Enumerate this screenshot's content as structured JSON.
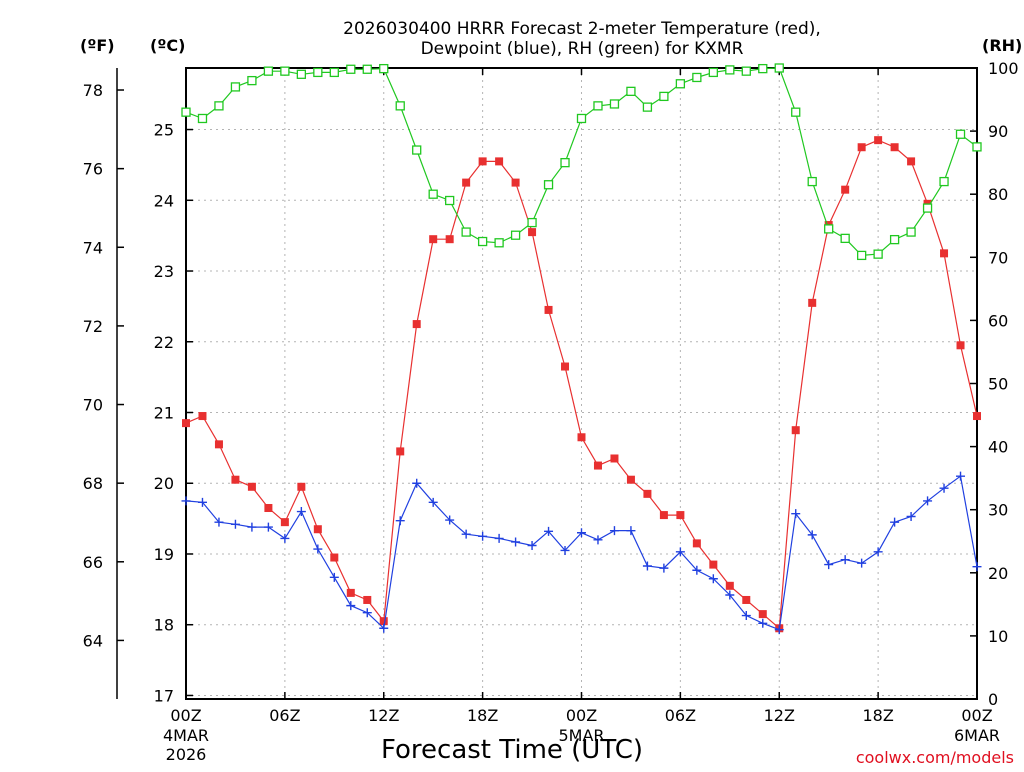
{
  "chart_data": {
    "type": "line",
    "title_line1": "2026030400 HRRR Forecast 2-meter Temperature (red),",
    "title_line2": "Dewpoint (blue), RH (green) for KXMR",
    "xlabel": "Forecast Time (UTC)",
    "credit": "coolwx.com/models",
    "x_range": [
      0,
      48
    ],
    "x_ticks": [
      {
        "x": 0,
        "label": "00Z"
      },
      {
        "x": 6,
        "label": "06Z"
      },
      {
        "x": 12,
        "label": "12Z"
      },
      {
        "x": 18,
        "label": "18Z"
      },
      {
        "x": 24,
        "label": "00Z"
      },
      {
        "x": 30,
        "label": "06Z"
      },
      {
        "x": 36,
        "label": "12Z"
      },
      {
        "x": 42,
        "label": "18Z"
      },
      {
        "x": 48,
        "label": "00Z"
      }
    ],
    "date_labels": [
      {
        "x": 0,
        "lines": [
          "4MAR",
          "2026"
        ]
      },
      {
        "x": 24,
        "lines": [
          "5MAR"
        ]
      },
      {
        "x": 48,
        "lines": [
          "6MAR"
        ]
      }
    ],
    "axes": {
      "fahrenheit": {
        "unit": "(ºF)",
        "range": [
          62.51,
          78.56
        ],
        "ticks": [
          64,
          66,
          68,
          70,
          72,
          74,
          76,
          78
        ]
      },
      "celsius": {
        "unit": "(ºC)",
        "range": [
          16.95,
          25.87
        ],
        "ticks": [
          17,
          18,
          19,
          20,
          21,
          22,
          23,
          24,
          25
        ]
      },
      "rh": {
        "unit": "(RH)",
        "range": [
          0,
          100
        ],
        "ticks": [
          0,
          10,
          20,
          30,
          40,
          50,
          60,
          70,
          80,
          90,
          100
        ]
      }
    },
    "series": [
      {
        "name": "Temperature",
        "axis": "celsius",
        "color": "#e83030",
        "marker": "filled-square",
        "values": [
          20.85,
          20.95,
          20.55,
          20.05,
          19.95,
          19.65,
          19.45,
          19.95,
          19.35,
          18.95,
          18.45,
          18.35,
          18.05,
          20.45,
          22.25,
          23.45,
          23.45,
          24.25,
          24.55,
          24.55,
          24.25,
          23.55,
          22.45,
          21.65,
          20.65,
          20.25,
          20.35,
          20.05,
          19.85,
          19.55,
          19.55,
          19.15,
          18.85,
          18.55,
          18.35,
          18.15,
          17.95,
          20.75,
          22.55,
          23.65,
          24.15,
          24.75,
          24.85,
          24.75,
          24.55,
          23.95,
          23.25,
          21.95,
          20.95
        ]
      },
      {
        "name": "Dewpoint",
        "axis": "celsius",
        "color": "#2040e0",
        "marker": "plus",
        "values": [
          19.75,
          19.73,
          19.45,
          19.42,
          19.38,
          19.38,
          19.22,
          19.6,
          19.07,
          18.67,
          18.27,
          18.17,
          17.95,
          19.47,
          20.0,
          19.73,
          19.48,
          19.28,
          19.25,
          19.22,
          19.17,
          19.12,
          19.32,
          19.05,
          19.3,
          19.2,
          19.33,
          19.33,
          18.83,
          18.8,
          19.03,
          18.77,
          18.65,
          18.42,
          18.13,
          18.02,
          17.93,
          19.57,
          19.27,
          18.85,
          18.92,
          18.87,
          19.03,
          19.45,
          19.53,
          19.75,
          19.93,
          20.1,
          18.82
        ]
      },
      {
        "name": "RH",
        "axis": "rh",
        "color": "#20c820",
        "marker": "open-square",
        "values": [
          93,
          92,
          94,
          97,
          98,
          99.5,
          99.5,
          99,
          99.3,
          99.3,
          99.8,
          99.8,
          99.9,
          94,
          87,
          80,
          79,
          74,
          72.5,
          72.3,
          73.5,
          75.5,
          81.5,
          85,
          92,
          94,
          94.3,
          96.3,
          93.8,
          95.5,
          97.5,
          98.5,
          99.3,
          99.7,
          99.5,
          99.9,
          100,
          93,
          82,
          74.5,
          73,
          70.3,
          70.5,
          72.8,
          74,
          77.8,
          82,
          89.5,
          87.5
        ]
      }
    ]
  }
}
